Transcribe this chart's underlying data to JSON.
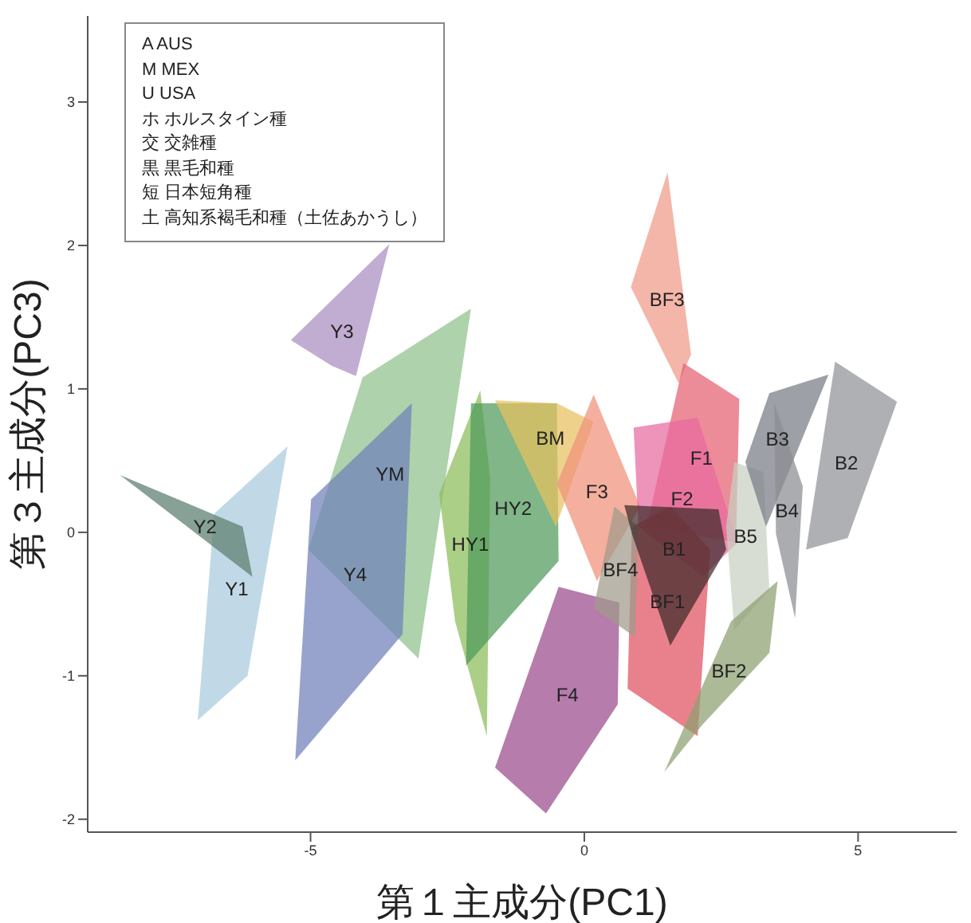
{
  "chart_data": {
    "type": "area",
    "xlabel": "第１主成分(PC1)",
    "ylabel": "第３主成分(PC3)",
    "xlim": [
      -9.07,
      6.8
    ],
    "ylim": [
      -2.09,
      3.6
    ],
    "xticks": [
      -5,
      0,
      5
    ],
    "yticks": [
      -2,
      -1,
      0,
      1,
      2,
      3
    ],
    "grid": false,
    "marker": "none",
    "legend": false,
    "annotations": [
      "A  AUS",
      "M  MEX",
      "U  USA",
      "ホ  ホルスタイン種",
      "交  交雑種",
      "黒  黒毛和種",
      "短  日本短角種",
      "土  高知系褐毛和種（土佐あかうし）"
    ],
    "series": [
      {
        "name": "YM",
        "color": "#8fc08a",
        "x": [
          -2.07,
          -4.05,
          -5.04,
          -3.03
        ],
        "values": [
          1.56,
          1.08,
          -0.12,
          -0.88
        ]
      },
      {
        "name": "Y4",
        "color": "#6f7fb8",
        "x": [
          -3.15,
          -4.99,
          -5.28,
          -3.32
        ],
        "values": [
          0.9,
          0.23,
          -1.59,
          -0.71
        ]
      },
      {
        "name": "Y3",
        "color": "#a98cc0",
        "x": [
          -3.56,
          -5.36,
          -4.61,
          -4.17
        ],
        "values": [
          2.01,
          1.34,
          1.16,
          1.09
        ]
      },
      {
        "name": "Y1",
        "color": "#a9cbdd",
        "x": [
          -5.42,
          -6.76,
          -7.06,
          -6.15
        ],
        "values": [
          0.6,
          0.13,
          -1.31,
          -1.0
        ]
      },
      {
        "name": "Y2",
        "color": "#5a7d6e",
        "x": [
          -8.48,
          -6.24,
          -6.06
        ],
        "values": [
          0.4,
          0.04,
          -0.31
        ]
      },
      {
        "name": "HY1",
        "color": "#8cbd5a",
        "x": [
          -1.9,
          -1.72,
          -1.78,
          -2.36,
          -2.65
        ],
        "values": [
          0.99,
          0.38,
          -1.42,
          -0.62,
          0.27
        ]
      },
      {
        "name": "HY2",
        "color": "#4f9a5a",
        "x": [
          -2.07,
          -0.5,
          -0.47,
          -2.16
        ],
        "values": [
          0.9,
          0.9,
          -0.2,
          -0.93
        ]
      },
      {
        "name": "BM",
        "color": "#e8c060",
        "x": [
          -1.63,
          -0.5,
          0.17,
          -0.52
        ],
        "values": [
          0.92,
          0.9,
          0.77,
          0.04
        ]
      },
      {
        "name": "F3",
        "color": "#f0907a",
        "x": [
          0.17,
          1.02,
          0.23,
          -0.5
        ],
        "values": [
          0.96,
          0.18,
          -0.34,
          0.34
        ]
      },
      {
        "name": "BF3",
        "color": "#ee9a88",
        "x": [
          1.52,
          1.95,
          1.72,
          0.85
        ],
        "values": [
          2.51,
          1.24,
          1.04,
          1.71
        ]
      },
      {
        "name": "F4",
        "color": "#9a4a8a",
        "x": [
          -0.47,
          0.64,
          0.61,
          -0.7,
          -1.63
        ],
        "values": [
          -0.38,
          -0.49,
          -1.2,
          -1.96,
          -1.64
        ]
      },
      {
        "name": "F1",
        "color": "#e56070",
        "x": [
          1.81,
          2.83,
          2.77,
          1.14
        ],
        "values": [
          1.18,
          0.93,
          -0.07,
          0.04
        ]
      },
      {
        "name": "F2",
        "color": "#e86aa0",
        "x": [
          0.9,
          2.07,
          2.8,
          2.16,
          0.99
        ],
        "values": [
          0.73,
          0.8,
          -0.07,
          -0.31,
          0.04
        ]
      },
      {
        "name": "BF1",
        "color": "#e05060",
        "x": [
          0.87,
          1.57,
          2.3,
          2.07,
          0.79
        ],
        "values": [
          0.04,
          0.18,
          -0.12,
          -1.42,
          -1.09
        ]
      },
      {
        "name": "BF4",
        "color": "#a09a8a",
        "x": [
          0.55,
          0.99,
          0.93,
          0.17
        ],
        "values": [
          0.18,
          0.04,
          -0.73,
          -0.53
        ]
      },
      {
        "name": "B1",
        "color": "#3e2a2a",
        "x": [
          0.73,
          2.45,
          2.59,
          1.57,
          0.87
        ],
        "values": [
          0.19,
          0.16,
          -0.12,
          -0.79,
          -0.01
        ]
      },
      {
        "name": "B5",
        "color": "#c8d0c0",
        "x": [
          2.74,
          3.27,
          3.38,
          2.74,
          2.59
        ],
        "values": [
          0.49,
          0.42,
          -0.4,
          -0.68,
          0.04
        ]
      },
      {
        "name": "BF2",
        "color": "#8ea070",
        "x": [
          3.53,
          3.38,
          2.16,
          1.46,
          2.68
        ],
        "values": [
          -0.34,
          -0.84,
          -1.34,
          -1.67,
          -0.62
        ]
      },
      {
        "name": "B3",
        "color": "#787c85",
        "x": [
          3.38,
          4.46,
          3.32,
          2.94
        ],
        "values": [
          0.97,
          1.1,
          0.04,
          0.49
        ]
      },
      {
        "name": "B4",
        "color": "#8a8c92",
        "x": [
          3.47,
          3.99,
          3.85,
          3.5
        ],
        "values": [
          0.9,
          0.32,
          -0.6,
          -0.01
        ]
      },
      {
        "name": "B2",
        "color": "#909296",
        "x": [
          4.58,
          5.71,
          4.81,
          4.05
        ],
        "values": [
          1.19,
          0.91,
          -0.04,
          -0.12
        ]
      }
    ]
  }
}
